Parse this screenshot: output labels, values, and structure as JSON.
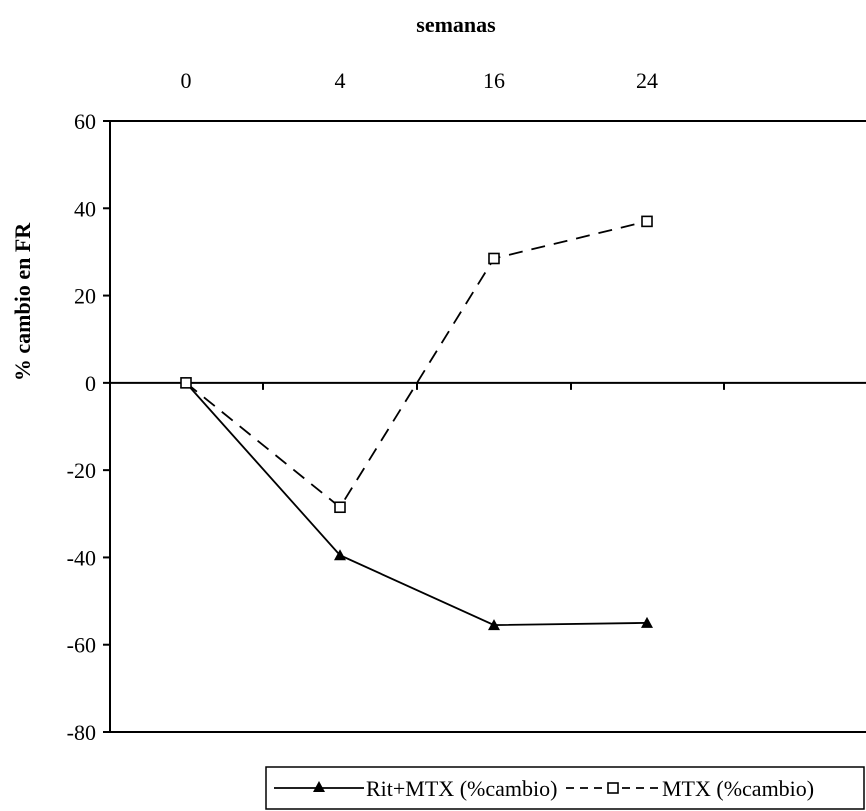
{
  "chart_data": {
    "type": "line",
    "title": "",
    "xlabel": "semanas",
    "ylabel": "% cambio en FR",
    "categories": [
      "0",
      "4",
      "16",
      "24"
    ],
    "ylim": [
      -80,
      60
    ],
    "yticks": [
      60,
      40,
      20,
      0,
      -20,
      -40,
      -60,
      -80
    ],
    "x_axis_position": "top",
    "grid": false,
    "legend_position": "bottom",
    "series": [
      {
        "name": "Rit+MTX (%cambio)",
        "values": [
          0,
          -39.5,
          -55.5,
          -55
        ],
        "style": "solid",
        "marker": "filled-triangle",
        "color": "#000000"
      },
      {
        "name": "MTX (%cambio)",
        "values": [
          0,
          -28.5,
          28.5,
          37
        ],
        "style": "dashed",
        "marker": "open-square",
        "color": "#000000"
      }
    ]
  }
}
